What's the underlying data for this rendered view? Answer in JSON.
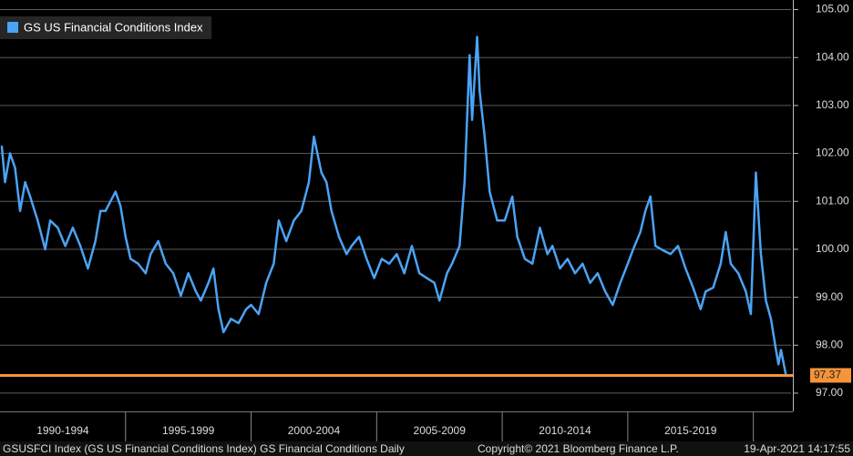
{
  "chart_data": {
    "type": "line",
    "x": [
      1990.07,
      1990.2,
      1990.4,
      1990.6,
      1990.8,
      1991.0,
      1991.2,
      1991.5,
      1991.8,
      1992.0,
      1992.3,
      1992.6,
      1992.9,
      1993.2,
      1993.5,
      1993.8,
      1994.0,
      1994.2,
      1994.4,
      1994.6,
      1994.8,
      1995.0,
      1995.2,
      1995.5,
      1995.8,
      1996.0,
      1996.3,
      1996.6,
      1996.9,
      1997.2,
      1997.5,
      1997.8,
      1998.0,
      1998.3,
      1998.5,
      1998.7,
      1998.9,
      1999.2,
      1999.5,
      1999.8,
      2000.0,
      2000.3,
      2000.6,
      2000.9,
      2001.1,
      2001.4,
      2001.7,
      2002.0,
      2002.3,
      2002.5,
      2002.8,
      2003.0,
      2003.2,
      2003.5,
      2003.8,
      2004.0,
      2004.3,
      2004.6,
      2004.9,
      2005.2,
      2005.5,
      2005.8,
      2006.1,
      2006.4,
      2006.7,
      2007.0,
      2007.3,
      2007.5,
      2007.8,
      2008.0,
      2008.3,
      2008.5,
      2008.7,
      2008.8,
      2009.0,
      2009.1,
      2009.3,
      2009.5,
      2009.8,
      2010.1,
      2010.4,
      2010.6,
      2010.9,
      2011.2,
      2011.5,
      2011.8,
      2012.0,
      2012.3,
      2012.6,
      2012.9,
      2013.2,
      2013.5,
      2013.8,
      2014.1,
      2014.4,
      2014.7,
      2015.0,
      2015.2,
      2015.5,
      2015.7,
      2015.9,
      2016.1,
      2016.4,
      2016.7,
      2017.0,
      2017.3,
      2017.6,
      2017.9,
      2018.1,
      2018.4,
      2018.7,
      2018.9,
      2019.1,
      2019.4,
      2019.7,
      2019.9,
      2020.1,
      2020.3,
      2020.5,
      2020.7,
      2020.9,
      2021.0,
      2021.1,
      2021.3
    ],
    "series": [
      {
        "name": "GS US Financial Conditions Index",
        "color": "#4ba3f5",
        "values": [
          102.16,
          101.4,
          102.0,
          101.7,
          100.8,
          101.4,
          101.1,
          100.6,
          100.0,
          100.6,
          100.45,
          100.07,
          100.45,
          100.07,
          99.6,
          100.17,
          100.8,
          100.8,
          101.0,
          101.2,
          100.9,
          100.26,
          99.8,
          99.7,
          99.5,
          99.9,
          100.17,
          99.7,
          99.5,
          99.03,
          99.5,
          99.12,
          98.93,
          99.3,
          99.6,
          98.75,
          98.27,
          98.55,
          98.46,
          98.75,
          98.84,
          98.65,
          99.3,
          99.7,
          100.6,
          100.17,
          100.6,
          100.8,
          101.4,
          102.35,
          101.6,
          101.4,
          100.8,
          100.26,
          99.9,
          100.07,
          100.26,
          99.8,
          99.4,
          99.8,
          99.7,
          99.9,
          99.5,
          100.07,
          99.5,
          99.4,
          99.3,
          98.93,
          99.5,
          99.7,
          100.07,
          101.4,
          104.05,
          102.7,
          104.43,
          103.3,
          102.35,
          101.2,
          100.6,
          100.6,
          101.1,
          100.26,
          99.8,
          99.7,
          100.45,
          99.9,
          100.07,
          99.6,
          99.8,
          99.5,
          99.7,
          99.3,
          99.5,
          99.12,
          98.84,
          99.3,
          99.7,
          99.98,
          100.36,
          100.8,
          101.1,
          100.07,
          99.98,
          99.9,
          100.07,
          99.6,
          99.2,
          98.75,
          99.12,
          99.2,
          99.7,
          100.36,
          99.7,
          99.5,
          99.12,
          98.65,
          101.6,
          99.9,
          98.93,
          98.55,
          97.9,
          97.6,
          97.9,
          97.37
        ]
      }
    ],
    "last_value": 97.37,
    "last_color": "#f5943a",
    "xlim": [
      1990,
      2021.5
    ],
    "xticks": [
      {
        "value": 1992.5,
        "label": "1990-1994"
      },
      {
        "value": 1997.5,
        "label": "1995-1999"
      },
      {
        "value": 2002.5,
        "label": "2000-2004"
      },
      {
        "value": 2007.5,
        "label": "2005-2009"
      },
      {
        "value": 2012.5,
        "label": "2010-2014"
      },
      {
        "value": 2017.5,
        "label": "2015-2019"
      }
    ],
    "ylim": [
      96.6,
      105.2
    ],
    "yticks": [
      {
        "value": 97,
        "label": "97.00"
      },
      {
        "value": 98,
        "label": "98.00"
      },
      {
        "value": 99,
        "label": "99.00"
      },
      {
        "value": 100,
        "label": "100.00"
      },
      {
        "value": 101,
        "label": "101.00"
      },
      {
        "value": 102,
        "label": "102.00"
      },
      {
        "value": 103,
        "label": "103.00"
      },
      {
        "value": 104,
        "label": "104.00"
      },
      {
        "value": 105,
        "label": "105.00"
      }
    ],
    "grid": true
  },
  "footer": {
    "left": "GSUSFCI Index (GS US Financial Conditions Index) GS Financial Conditions  Daily",
    "center": "Copyright© 2021 Bloomberg Finance L.P.",
    "right": "19-Apr-2021 14:17:55"
  }
}
